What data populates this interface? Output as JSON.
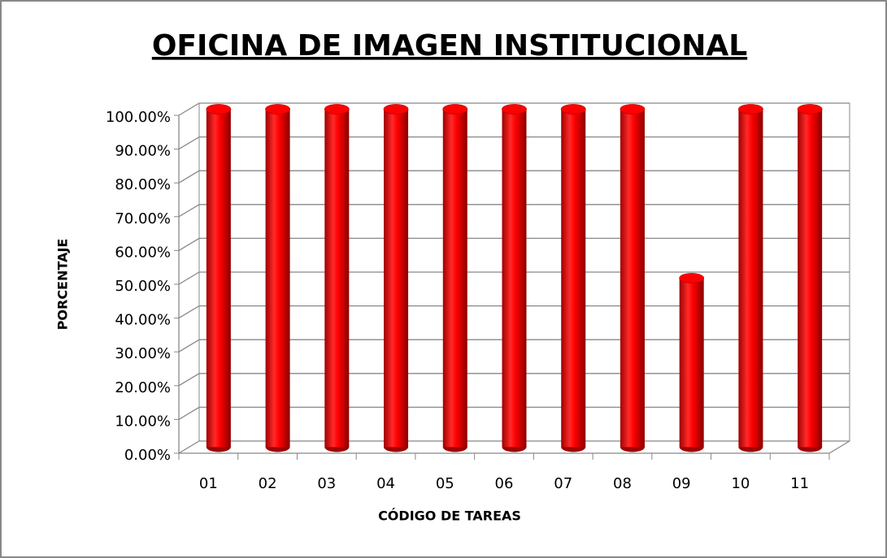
{
  "chart_data": {
    "type": "bar3d",
    "title": "OFICINA DE IMAGEN INSTITUCIONAL",
    "x_label": "CÓDIGO DE TAREAS",
    "y_label": "PORCENTAJE",
    "categories": [
      "01",
      "02",
      "03",
      "04",
      "05",
      "06",
      "07",
      "08",
      "09",
      "10",
      "11"
    ],
    "values": [
      100,
      100,
      100,
      100,
      100,
      100,
      100,
      100,
      50,
      100,
      100
    ],
    "color": "#ff0000",
    "ylim": [
      0,
      100
    ],
    "yticks": [
      {
        "value": 0,
        "label": "0.00%"
      },
      {
        "value": 10,
        "label": "10.00%"
      },
      {
        "value": 20,
        "label": "20.00%"
      },
      {
        "value": 30,
        "label": "30.00%"
      },
      {
        "value": 40,
        "label": "40.00%"
      },
      {
        "value": 50,
        "label": "50.00%"
      },
      {
        "value": 60,
        "label": "60.00%"
      },
      {
        "value": 70,
        "label": "70.00%"
      },
      {
        "value": 80,
        "label": "80.00%"
      },
      {
        "value": 90,
        "label": "90.00%"
      },
      {
        "value": 100,
        "label": "100.00%"
      }
    ],
    "grid": true
  }
}
